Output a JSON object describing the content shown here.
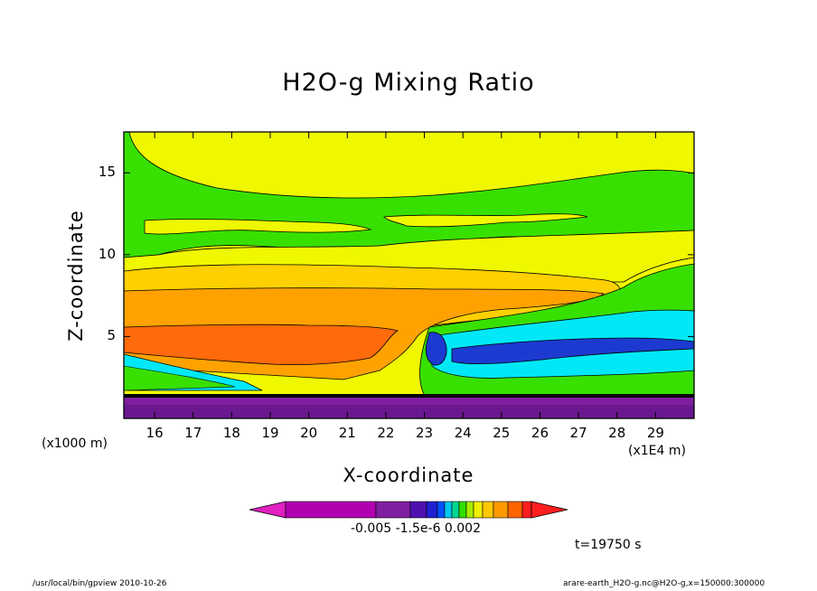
{
  "chart_data": {
    "type": "heatmap",
    "title": "H2O-g Mixing Ratio",
    "xlabel": "X-coordinate",
    "ylabel": "Z-coordinate",
    "x_unit": "(x1E4 m)",
    "y_unit": "(x1000 m)",
    "xlim": [
      15.2,
      30.0
    ],
    "ylim": [
      0.0,
      17.5
    ],
    "x_ticks": [
      "16",
      "17",
      "18",
      "19",
      "20",
      "21",
      "22",
      "23",
      "24",
      "25",
      "26",
      "27",
      "28",
      "29"
    ],
    "y_ticks": [
      "5",
      "10",
      "15"
    ],
    "x_tick_values": [
      16,
      17,
      18,
      19,
      20,
      21,
      22,
      23,
      24,
      25,
      26,
      27,
      28,
      29
    ],
    "y_tick_values": [
      5,
      10,
      15
    ],
    "colorbar_labels": "-0.005 -1.5e-6 0.002",
    "colorbar_colors": [
      "#e020c0",
      "#b000b0",
      "#7f1ea0",
      "#5010b0",
      "#2020d0",
      "#0050ff",
      "#00c8f0",
      "#00d890",
      "#30e000",
      "#a8ec00",
      "#f0f000",
      "#ffc800",
      "#ff9a00",
      "#ff6400",
      "#ff1e1e"
    ],
    "annotation_time": "t=19750 s",
    "footer_left": "/usr/local/bin/gpview  2010-10-26",
    "footer_right": "arare-earth_H2O-g.nc@H2O-g,x=150000:300000"
  },
  "colors": {
    "purple": "#7f1ea0",
    "blue": "#1c3ad0",
    "cyan": "#00e8f8",
    "green": "#38e000",
    "yellow": "#f0f800",
    "light_orange": "#ffd000",
    "orange": "#ffa200",
    "dark_orange": "#ff6a0a"
  }
}
